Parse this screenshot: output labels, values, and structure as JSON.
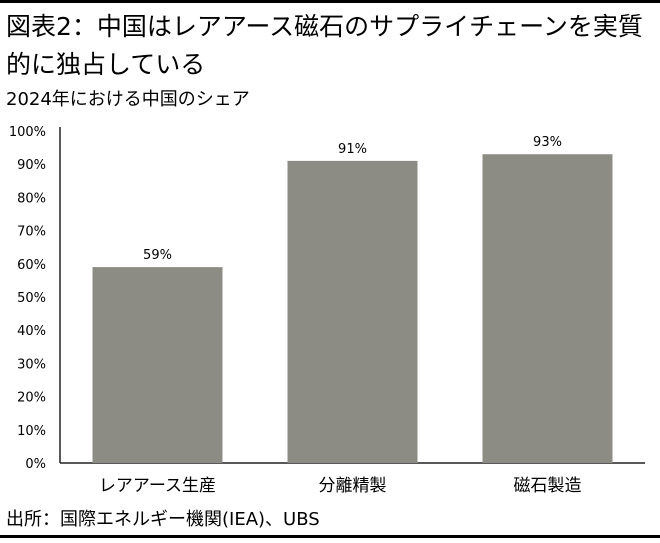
{
  "header": {
    "title": "図表2：中国はレアアース磁石のサプライチェーンを実質的に独占している"
  },
  "chart_data": {
    "type": "bar",
    "title": "2024年における中国のシェア",
    "categories": [
      "レアアース生産",
      "分離精製",
      "磁石製造"
    ],
    "values": [
      59,
      91,
      93
    ],
    "value_labels": [
      "59%",
      "91%",
      "93%"
    ],
    "y_ticks": [
      "0%",
      "10%",
      "20%",
      "30%",
      "40%",
      "50%",
      "60%",
      "70%",
      "80%",
      "90%",
      "100%"
    ],
    "ylim": [
      0,
      100
    ],
    "grid": false,
    "bar_color": "#8c8c84"
  },
  "footer": {
    "source": "出所：国際エネルギー機関(IEA)、UBS"
  }
}
